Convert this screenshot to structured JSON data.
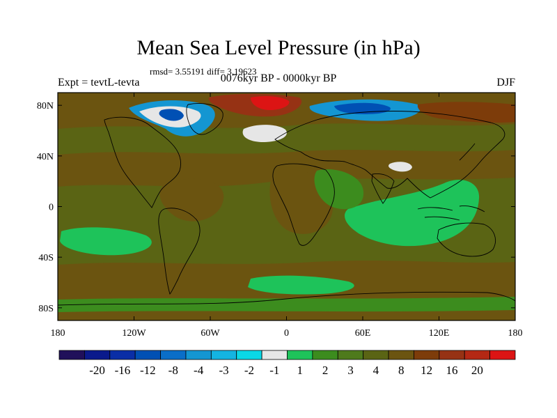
{
  "title": "Mean Sea Level Pressure (in hPa)",
  "stats_line": "rmsd= 3.55191 diff= 3.19623",
  "subtitle": "0076kyr BP - 0000kyr BP",
  "left_label": "Expt = tevtL-tevta",
  "right_label": "DJF",
  "lat_ticks": [
    {
      "label": "80N",
      "lat": 80
    },
    {
      "label": "40N",
      "lat": 40
    },
    {
      "label": "0",
      "lat": 0
    },
    {
      "label": "40S",
      "lat": -40
    },
    {
      "label": "80S",
      "lat": -80
    }
  ],
  "lon_ticks": [
    {
      "label": "180",
      "lon": -180
    },
    {
      "label": "120W",
      "lon": -120
    },
    {
      "label": "60W",
      "lon": -60
    },
    {
      "label": "0",
      "lon": 0
    },
    {
      "label": "60E",
      "lon": 60
    },
    {
      "label": "120E",
      "lon": 120
    },
    {
      "label": "180",
      "lon": 180
    }
  ],
  "colorbar": {
    "colors": [
      "#20105a",
      "#0a1a8c",
      "#0a2ea6",
      "#0050b4",
      "#0a6ec8",
      "#1496d2",
      "#14b4e1",
      "#0ad8e6",
      "#e6e6e6",
      "#1ec35a",
      "#3c8c1e",
      "#4e7a1c",
      "#5a6414",
      "#6b5410",
      "#7d3c0a",
      "#963214",
      "#b42814",
      "#dc1414"
    ],
    "labels": [
      "-20",
      "-16",
      "-12",
      "-8",
      "-4",
      "-3",
      "-2",
      "-1",
      "1",
      "2",
      "3",
      "4",
      "8",
      "12",
      "16",
      "20"
    ]
  },
  "field_colors": {
    "brown": "#6b5410",
    "olive": "#5a6414",
    "green_dark": "#3c8c1e",
    "green": "#1ec35a",
    "white": "#e6e6e6",
    "blue": "#1496d2",
    "blue_dark": "#0050b4",
    "red": "#dc1414",
    "red_dark": "#963214"
  }
}
